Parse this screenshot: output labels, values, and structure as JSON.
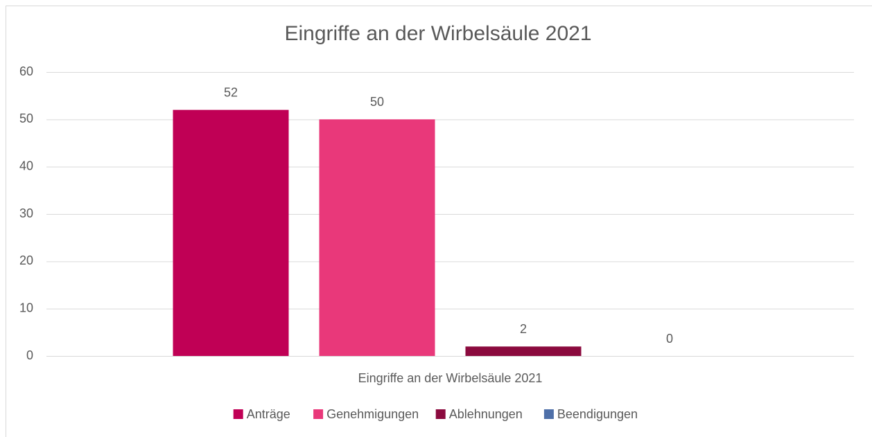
{
  "chart_data": {
    "type": "bar",
    "title": "Eingriffe an der Wirbelsäule 2021",
    "categories": [
      "Eingriffe an der Wirbelsäule 2021"
    ],
    "series": [
      {
        "name": "Anträge",
        "color": "#c00055",
        "values": [
          52
        ]
      },
      {
        "name": "Genehmigungen",
        "color": "#e9387a",
        "values": [
          50
        ]
      },
      {
        "name": "Ablehnungen",
        "color": "#8b0a3e",
        "values": [
          2
        ]
      },
      {
        "name": "Beendigungen",
        "color": "#4e6fa8",
        "values": [
          0
        ]
      }
    ],
    "ylim": [
      0,
      60
    ],
    "yticks": [
      0,
      10,
      20,
      30,
      40,
      50,
      60
    ],
    "grid": true,
    "legend": "bottom"
  }
}
